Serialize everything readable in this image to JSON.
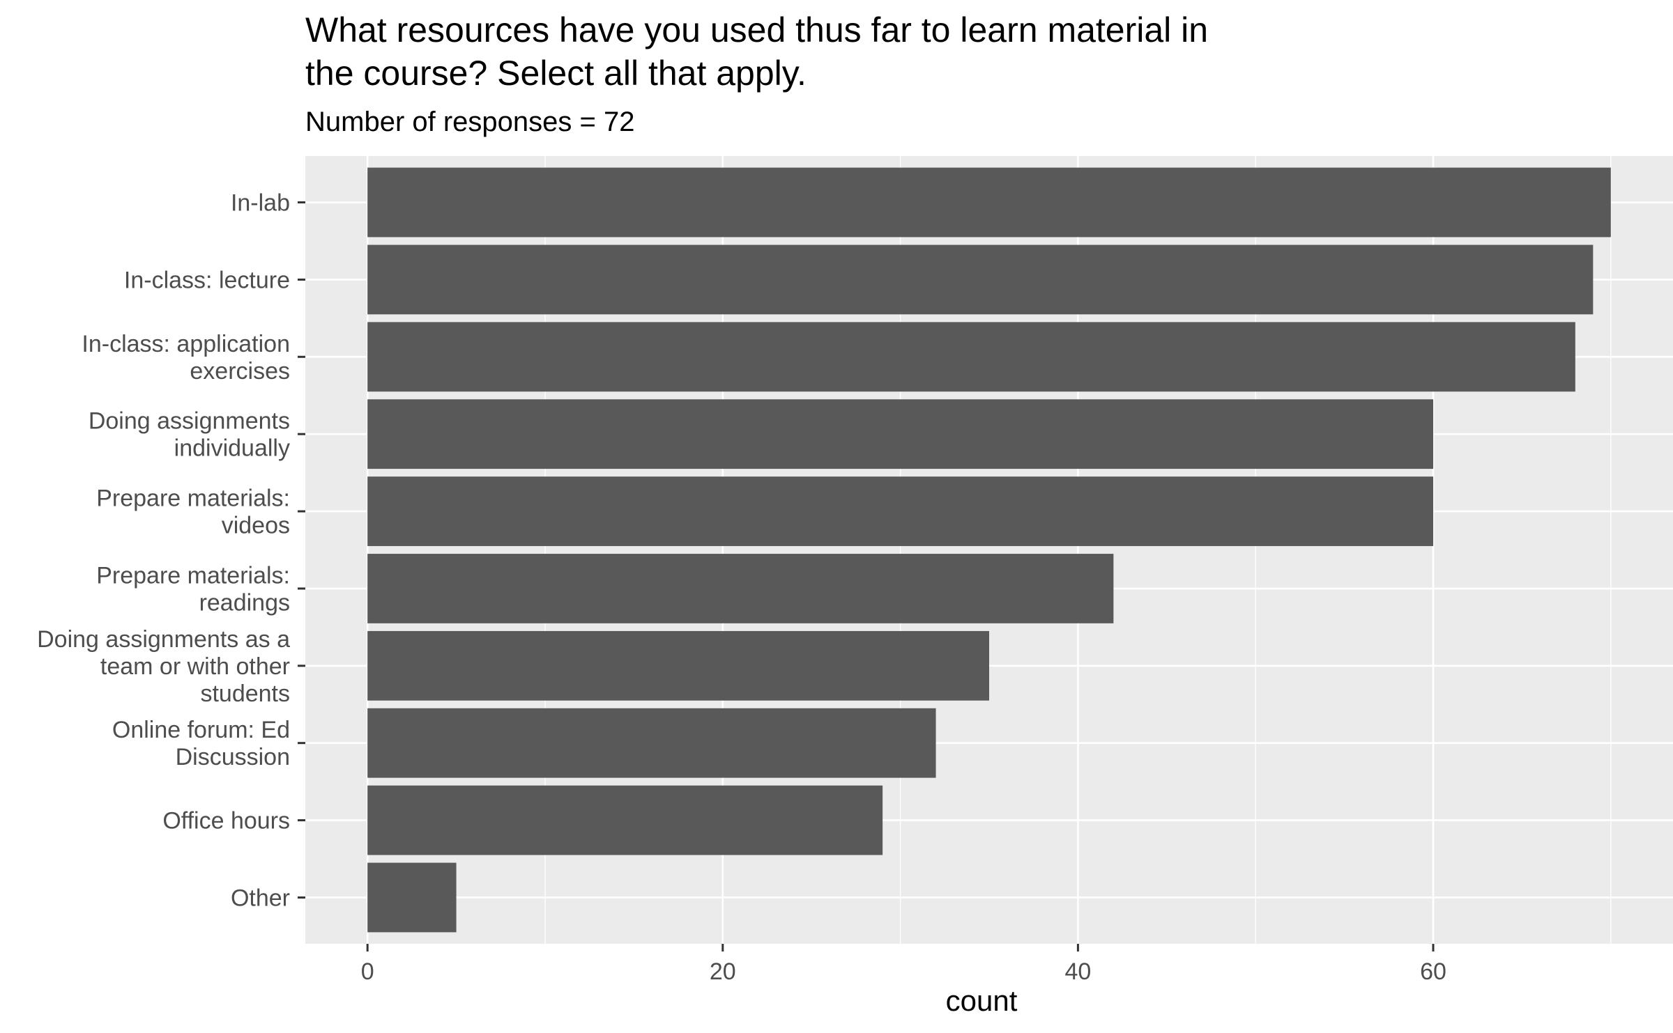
{
  "chart_data": {
    "type": "bar",
    "orientation": "horizontal",
    "title_lines": [
      "What resources have you used thus far to learn material in",
      "the course? Select all that apply."
    ],
    "subtitle": "Number of responses = 72",
    "xlabel": "count",
    "ylabel": "",
    "xlim": [
      -3.5,
      73.5
    ],
    "xticks": [
      0,
      20,
      40,
      60
    ],
    "grid": true,
    "categories": [
      [
        "In-lab"
      ],
      [
        "In-class: lecture"
      ],
      [
        "In-class: application",
        "exercises"
      ],
      [
        "Doing assignments",
        "individually"
      ],
      [
        "Prepare materials:",
        "videos"
      ],
      [
        "Prepare materials:",
        "readings"
      ],
      [
        "Doing assignments as a",
        "team or with other",
        "students"
      ],
      [
        "Online forum: Ed",
        "Discussion"
      ],
      [
        "Office hours"
      ],
      [
        "Other"
      ]
    ],
    "values": [
      70,
      69,
      68,
      60,
      60,
      42,
      35,
      32,
      29,
      5
    ],
    "colors": {
      "panel": "#ebebeb",
      "grid_major": "#ffffff",
      "bar": "#595959",
      "tick": "#333333",
      "tick_text": "#4d4d4d"
    }
  }
}
